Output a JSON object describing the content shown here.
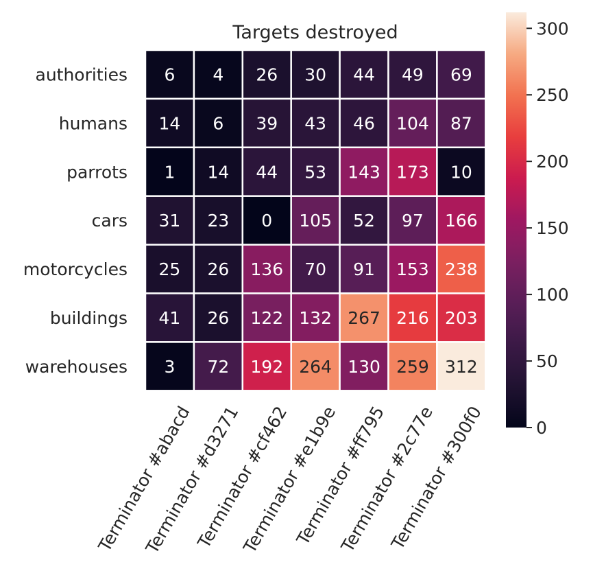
{
  "chart_data": {
    "type": "heatmap",
    "title": "Targets destroyed",
    "xlabel": "",
    "ylabel": "",
    "x_categories": [
      "Terminator #abacd",
      "Terminator #d3271",
      "Terminator #cf462",
      "Terminator #e1b9e",
      "Terminator #ff795",
      "Terminator #2c77e",
      "Terminator #300f0"
    ],
    "y_categories": [
      "authorities",
      "humans",
      "parrots",
      "cars",
      "motorcycles",
      "buildings",
      "warehouses"
    ],
    "values": [
      [
        6,
        4,
        26,
        30,
        44,
        49,
        69
      ],
      [
        14,
        6,
        39,
        43,
        46,
        104,
        87
      ],
      [
        1,
        14,
        44,
        53,
        143,
        173,
        10
      ],
      [
        31,
        23,
        0,
        105,
        52,
        97,
        166
      ],
      [
        25,
        26,
        136,
        70,
        91,
        153,
        238
      ],
      [
        41,
        26,
        122,
        132,
        267,
        216,
        203
      ],
      [
        3,
        72,
        192,
        264,
        130,
        259,
        312
      ]
    ],
    "colorbar": {
      "min": 0,
      "max": 312,
      "ticks": [
        0,
        50,
        100,
        150,
        200,
        250,
        300
      ],
      "colormap": "rocket"
    },
    "annotations_shown": true,
    "grid": false
  }
}
